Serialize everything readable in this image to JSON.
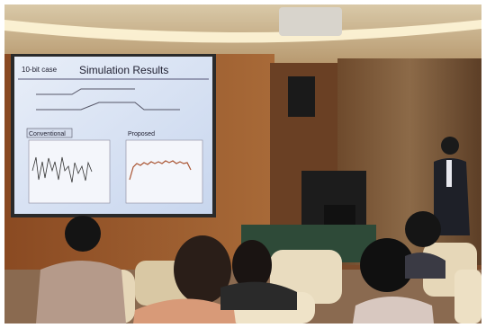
{
  "slide": {
    "label": "10-bit case",
    "title": "Simulation Results",
    "panels": [
      "Conventional",
      "Proposed"
    ]
  }
}
